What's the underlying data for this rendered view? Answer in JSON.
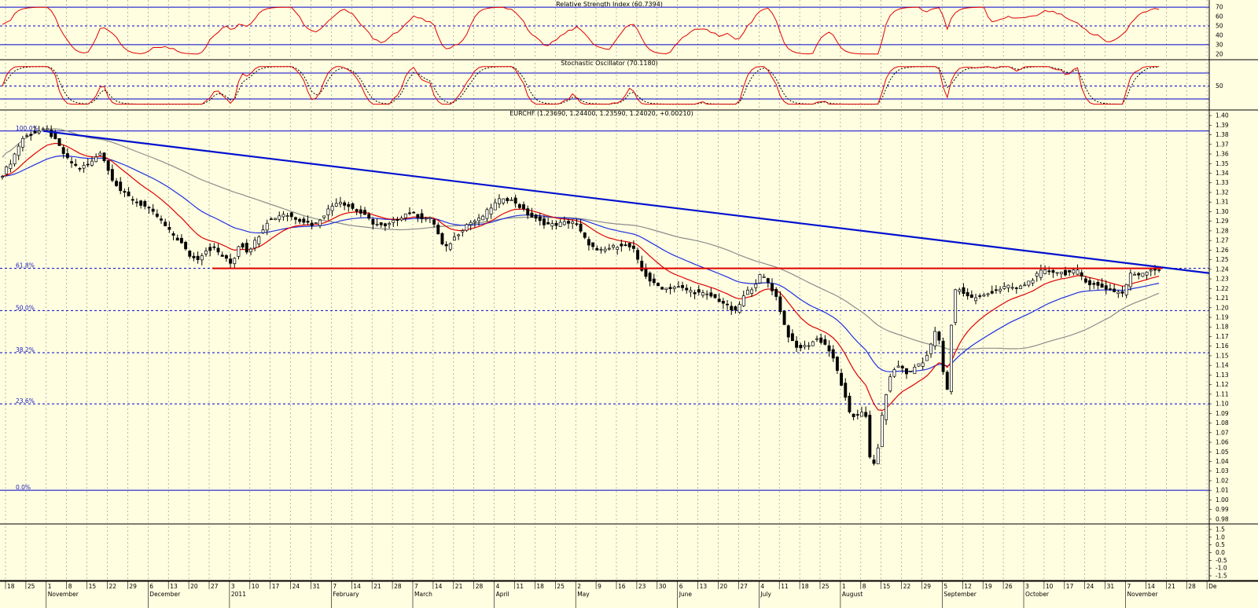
{
  "colors": {
    "background": "#fffee0",
    "panel_border": "#000000",
    "grid": "#8a8a8a",
    "level_line": "#0000cc",
    "rsi_line": "#e00000",
    "stoch_k": "#e00000",
    "stoch_d": "#000000",
    "ema_fast": "#e00000",
    "ema_slow": "#2030e0",
    "sma_long": "#8c8c8c",
    "trendline": "#0010d0",
    "support_line": "#e00000",
    "candle_up": "#ffffff",
    "candle_down": "#000000",
    "label_text": "#000000",
    "fib_text": "#2020c0"
  },
  "rsi_panel": {
    "title": "Relative Strength Index (60.7394)",
    "scale_labels": [
      "70",
      "60",
      "50",
      "40",
      "30",
      "20"
    ],
    "levels": [
      70,
      50,
      30
    ]
  },
  "stoch_panel": {
    "title": "Stochastic Oscillator (70.1180)",
    "scale_labels": [
      "50"
    ],
    "levels": [
      80,
      50,
      20
    ]
  },
  "price_panel": {
    "title": "EURCHF (1.23690, 1.24400, 1.23590, 1.24020, +0.00210)",
    "fib_labels": [
      "100.0%",
      "61.8%",
      "50.0%",
      "38.2%",
      "23.6%",
      "0.0%"
    ],
    "fib_levels": [
      1.3839,
      1.241,
      1.1971,
      1.1532,
      1.1,
      1.01
    ],
    "y_ticks": [
      "1.40",
      "1.39",
      "1.38",
      "1.37",
      "1.36",
      "1.35",
      "1.34",
      "1.33",
      "1.32",
      "1.31",
      "1.30",
      "1.29",
      "1.28",
      "1.27",
      "1.26",
      "1.25",
      "1.24",
      "1.23",
      "1.22",
      "1.21",
      "1.20",
      "1.19",
      "1.18",
      "1.17",
      "1.16",
      "1.15",
      "1.14",
      "1.13",
      "1.12",
      "1.11",
      "1.10",
      "1.09",
      "1.08",
      "1.07",
      "1.06",
      "1.05",
      "1.04",
      "1.03",
      "1.02",
      "1.01",
      "1.00",
      "0.99",
      "0.98"
    ]
  },
  "volume_panel": {
    "y_ticks": [
      "1.5",
      "1.0",
      "0.5",
      "0.0",
      "-0.5",
      "-1.0",
      "-1.5"
    ]
  },
  "x_axis": {
    "day_labels": [
      "18",
      "25",
      "1",
      "8",
      "15",
      "22",
      "29",
      "6",
      "13",
      "20",
      "27",
      "3",
      "10",
      "17",
      "24",
      "31",
      "7",
      "14",
      "21",
      "28",
      "7",
      "14",
      "21",
      "28",
      "4",
      "11",
      "18",
      "25",
      "2",
      "9",
      "16",
      "23",
      "30",
      "6",
      "13",
      "20",
      "27",
      "4",
      "11",
      "18",
      "25",
      "1",
      "8",
      "15",
      "22",
      "29",
      "5",
      "12",
      "19",
      "26",
      "3",
      "10",
      "17",
      "24",
      "31",
      "7",
      "14",
      "21",
      "28",
      "De"
    ],
    "month_labels": [
      "November",
      "December",
      "2011",
      "February",
      "March",
      "April",
      "May",
      "June",
      "July",
      "August",
      "September",
      "October",
      "November"
    ]
  },
  "chart_data": {
    "type": "candlestick",
    "symbol": "EURCHF",
    "period": "weekly-grid daily candles, Nov 2010 - Nov 2011",
    "ylim": [
      0.975,
      1.405
    ],
    "last_bar": {
      "open": 1.2369,
      "high": 1.244,
      "low": 1.2359,
      "close": 1.2402,
      "change": 0.0021
    },
    "anchors": [
      [
        0,
        1.335
      ],
      [
        14,
        1.352
      ],
      [
        28,
        1.376
      ],
      [
        45,
        1.383
      ],
      [
        60,
        1.385
      ],
      [
        72,
        1.372
      ],
      [
        85,
        1.355
      ],
      [
        100,
        1.345
      ],
      [
        115,
        1.35
      ],
      [
        128,
        1.363
      ],
      [
        140,
        1.338
      ],
      [
        155,
        1.32
      ],
      [
        170,
        1.312
      ],
      [
        185,
        1.305
      ],
      [
        200,
        1.295
      ],
      [
        215,
        1.28
      ],
      [
        230,
        1.268
      ],
      [
        240,
        1.255
      ],
      [
        250,
        1.25
      ],
      [
        262,
        1.26
      ],
      [
        272,
        1.262
      ],
      [
        285,
        1.252
      ],
      [
        295,
        1.245
      ],
      [
        305,
        1.268
      ],
      [
        315,
        1.258
      ],
      [
        325,
        1.27
      ],
      [
        340,
        1.29
      ],
      [
        360,
        1.298
      ],
      [
        380,
        1.292
      ],
      [
        400,
        1.286
      ],
      [
        415,
        1.3
      ],
      [
        430,
        1.312
      ],
      [
        445,
        1.305
      ],
      [
        460,
        1.298
      ],
      [
        475,
        1.288
      ],
      [
        490,
        1.284
      ],
      [
        505,
        1.292
      ],
      [
        520,
        1.3
      ],
      [
        535,
        1.294
      ],
      [
        550,
        1.292
      ],
      [
        565,
        1.26
      ],
      [
        580,
        1.275
      ],
      [
        595,
        1.288
      ],
      [
        610,
        1.292
      ],
      [
        625,
        1.305
      ],
      [
        640,
        1.315
      ],
      [
        655,
        1.31
      ],
      [
        670,
        1.298
      ],
      [
        685,
        1.29
      ],
      [
        700,
        1.286
      ],
      [
        715,
        1.288
      ],
      [
        730,
        1.29
      ],
      [
        745,
        1.27
      ],
      [
        760,
        1.258
      ],
      [
        775,
        1.262
      ],
      [
        790,
        1.266
      ],
      [
        805,
        1.262
      ],
      [
        815,
        1.24
      ],
      [
        830,
        1.225
      ],
      [
        845,
        1.22
      ],
      [
        860,
        1.222
      ],
      [
        875,
        1.218
      ],
      [
        890,
        1.215
      ],
      [
        905,
        1.212
      ],
      [
        920,
        1.205
      ],
      [
        935,
        1.195
      ],
      [
        948,
        1.215
      ],
      [
        958,
        1.222
      ],
      [
        968,
        1.235
      ],
      [
        978,
        1.225
      ],
      [
        988,
        1.21
      ],
      [
        1000,
        1.175
      ],
      [
        1012,
        1.158
      ],
      [
        1025,
        1.16
      ],
      [
        1040,
        1.168
      ],
      [
        1052,
        1.16
      ],
      [
        1062,
        1.142
      ],
      [
        1072,
        1.115
      ],
      [
        1082,
        1.085
      ],
      [
        1092,
        1.09
      ],
      [
        1100,
        1.095
      ],
      [
        1108,
        1.03
      ],
      [
        1115,
        1.045
      ],
      [
        1125,
        1.105
      ],
      [
        1135,
        1.135
      ],
      [
        1145,
        1.14
      ],
      [
        1155,
        1.13
      ],
      [
        1165,
        1.14
      ],
      [
        1175,
        1.145
      ],
      [
        1182,
        1.155
      ],
      [
        1190,
        1.178
      ],
      [
        1196,
        1.16
      ],
      [
        1200,
        1.13
      ],
      [
        1206,
        1.11
      ],
      [
        1212,
        1.22
      ],
      [
        1222,
        1.218
      ],
      [
        1235,
        1.21
      ],
      [
        1250,
        1.212
      ],
      [
        1265,
        1.218
      ],
      [
        1280,
        1.222
      ],
      [
        1295,
        1.22
      ],
      [
        1310,
        1.228
      ],
      [
        1325,
        1.238
      ],
      [
        1340,
        1.238
      ],
      [
        1355,
        1.236
      ],
      [
        1370,
        1.238
      ],
      [
        1385,
        1.225
      ],
      [
        1400,
        1.222
      ],
      [
        1415,
        1.218
      ],
      [
        1428,
        1.215
      ],
      [
        1438,
        1.235
      ],
      [
        1450,
        1.235
      ],
      [
        1462,
        1.24
      ],
      [
        1475,
        1.24
      ]
    ],
    "trendline": {
      "from": {
        "x_date": "2010-11-02",
        "y": 1.3839
      },
      "to": {
        "x_date": "2011-11-22",
        "y": 1.236
      }
    },
    "support_line": {
      "y": 1.241
    }
  }
}
